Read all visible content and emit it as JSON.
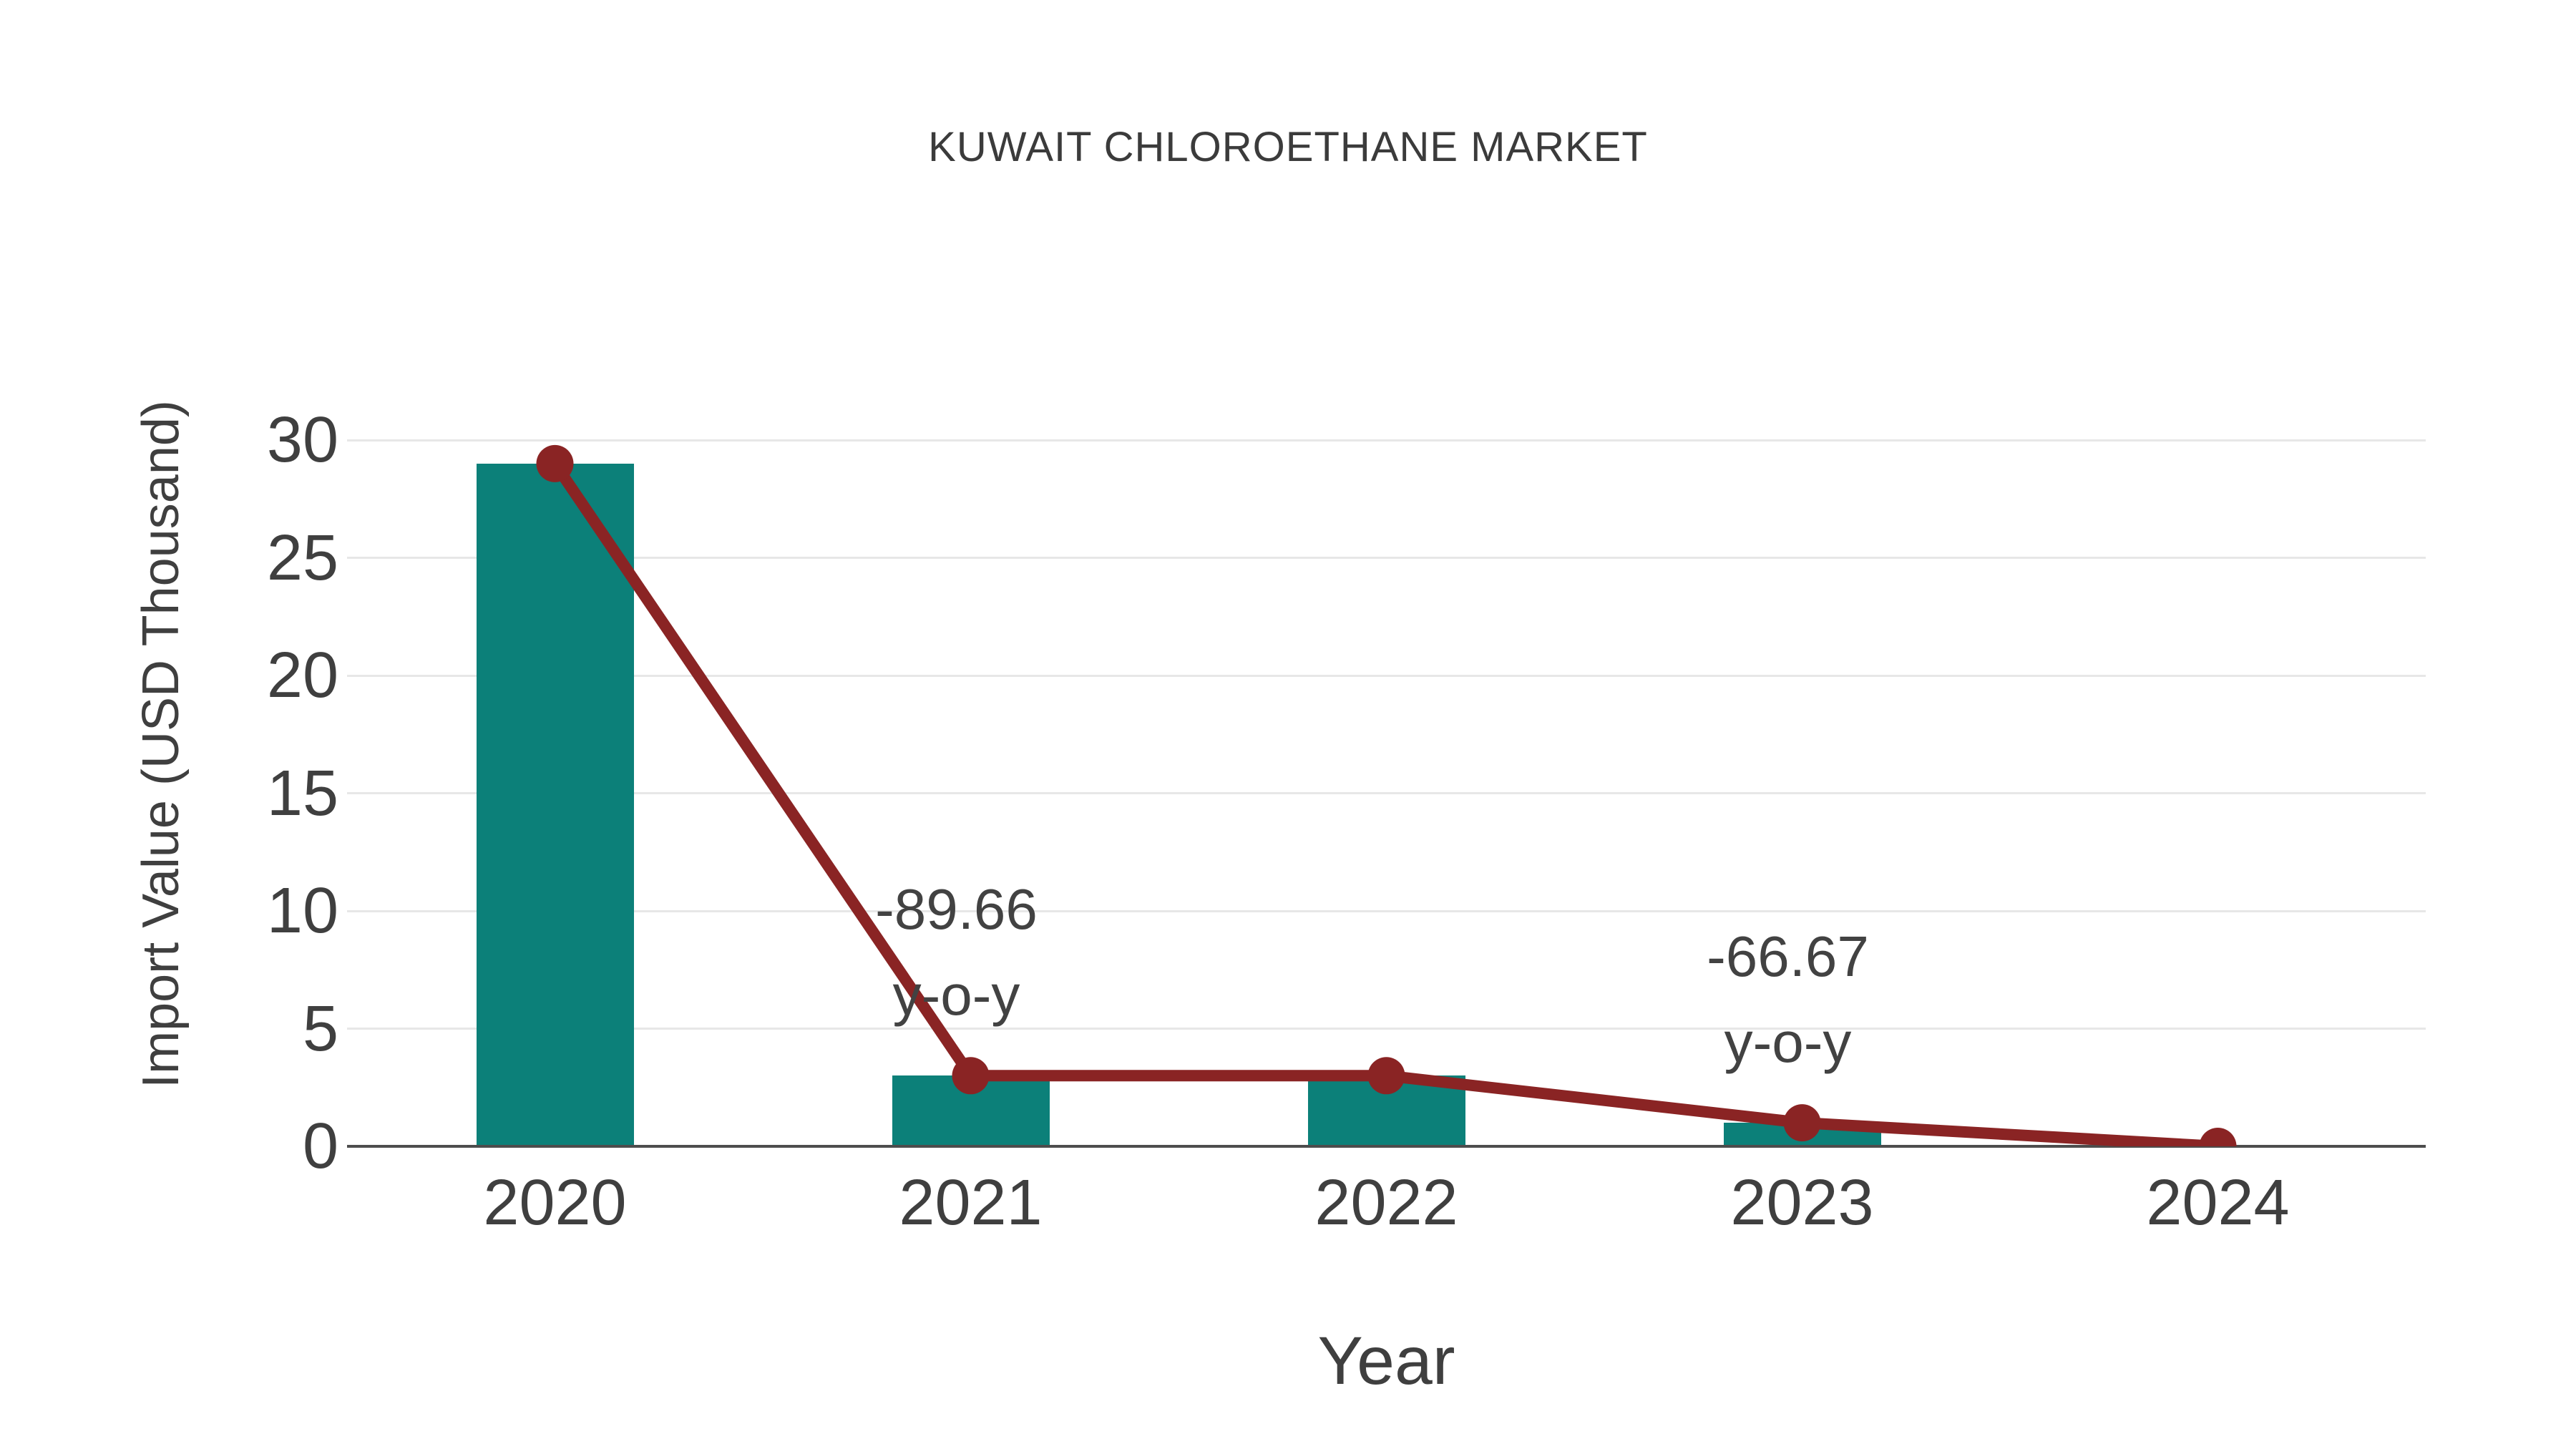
{
  "chart_data": {
    "type": "bar",
    "title": "KUWAIT CHLOROETHANE MARKET",
    "xlabel": "Year",
    "ylabel": "Import Value (USD Thousand)",
    "categories": [
      "2020",
      "2021",
      "2022",
      "2023",
      "2024"
    ],
    "series": [
      {
        "name": "Import Value bars",
        "type": "bar",
        "values": [
          29,
          3,
          3,
          1,
          0
        ]
      },
      {
        "name": "Import Value trend line",
        "type": "line",
        "values": [
          29,
          3,
          3,
          1,
          0
        ]
      }
    ],
    "yticks": [
      0,
      5,
      10,
      15,
      20,
      25,
      30
    ],
    "ylim": [
      0,
      30
    ],
    "grid": true,
    "legend_position": "none",
    "annotations": [
      {
        "category": "2021",
        "lines": [
          "-89.66",
          "y-o-y"
        ]
      },
      {
        "category": "2023",
        "lines": [
          "-66.67",
          "y-o-y"
        ]
      }
    ],
    "colors": {
      "bar": "#0c8079",
      "line": "#8a2424",
      "grid": "#e7e7e7",
      "axis": "#4d4d4d",
      "text": "#3f3f3f",
      "title": "#3b3b3b",
      "background": "#ffffff"
    }
  }
}
